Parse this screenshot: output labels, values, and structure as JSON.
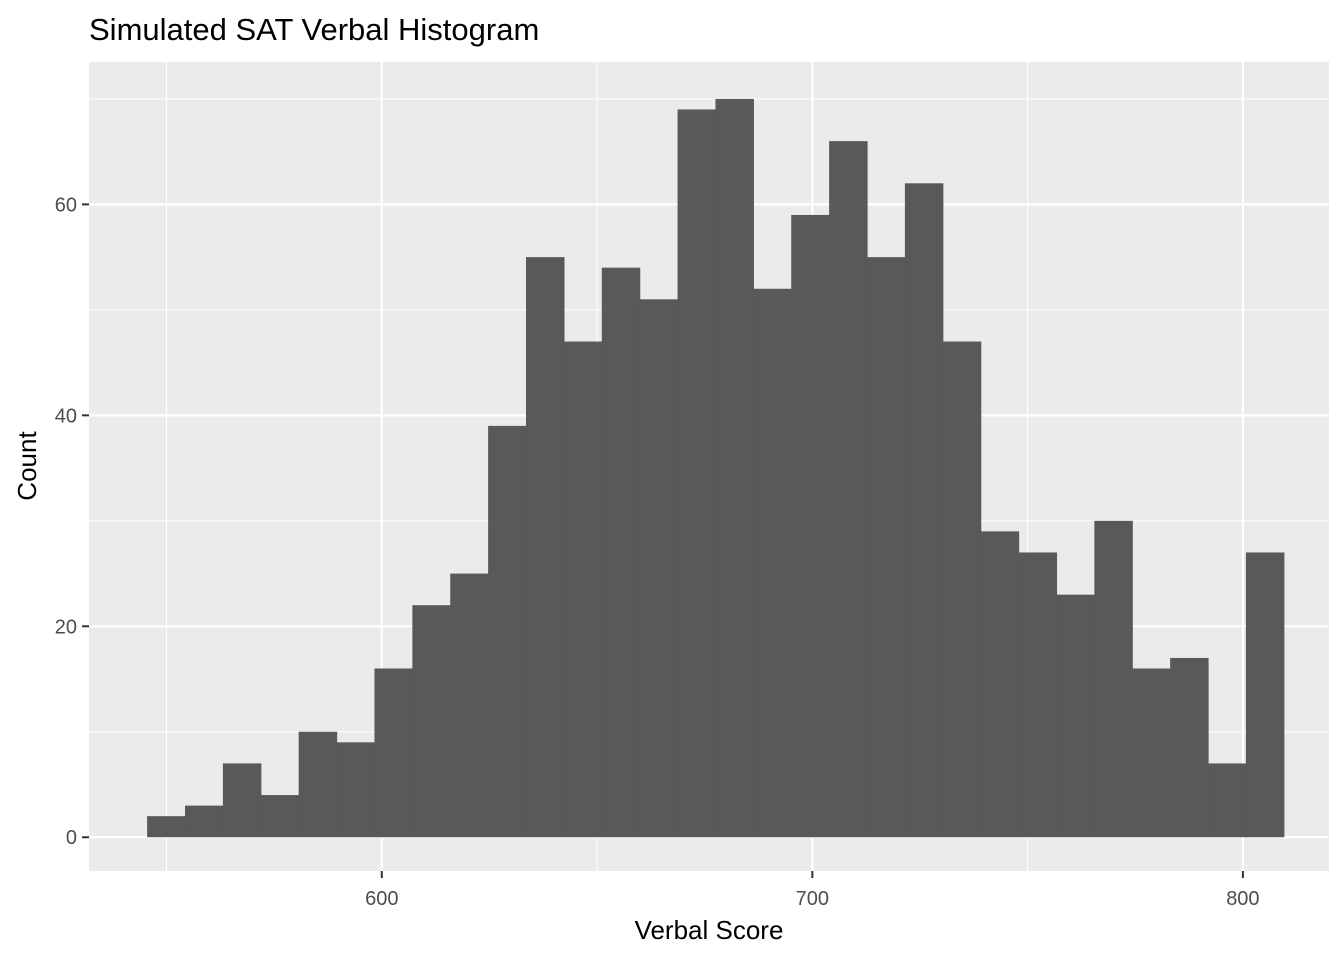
{
  "chart_data": {
    "type": "bar",
    "title": "Simulated SAT Verbal Histogram",
    "xlabel": "Verbal Score",
    "ylabel": "Count",
    "bin_width": 8.8,
    "x_start": 545.5,
    "counts": [
      2,
      3,
      7,
      4,
      10,
      9,
      16,
      22,
      25,
      39,
      55,
      47,
      54,
      51,
      69,
      70,
      52,
      59,
      66,
      55,
      62,
      47,
      29,
      27,
      23,
      30,
      16,
      17,
      7,
      27
    ],
    "xlim": [
      532,
      820
    ],
    "ylim": [
      -3.2,
      73.5
    ],
    "x_ticks": [
      600,
      700,
      800
    ],
    "x_tick_labels": [
      "600",
      "700",
      "800"
    ],
    "y_ticks": [
      0,
      20,
      40,
      60
    ],
    "y_tick_labels": [
      "0",
      "20",
      "40",
      "60"
    ],
    "bar_color": "#595959",
    "panel_color": "#ebebeb",
    "grid_color": "#ffffff",
    "grid": true,
    "legend": "none"
  }
}
